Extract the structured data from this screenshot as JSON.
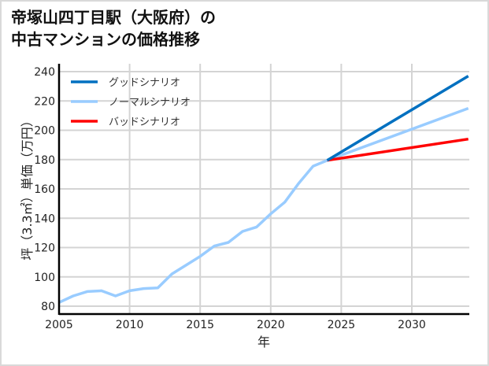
{
  "title": {
    "line1": "帝塚山四丁目駅（大阪府）の",
    "line2": "中古マンションの価格推移"
  },
  "chart_data": {
    "type": "line",
    "title": "帝塚山四丁目駅（大阪府）の中古マンションの価格推移",
    "xlabel": "年",
    "ylabel": "坪（3.3㎡）単価（万円）",
    "xlim": [
      2005,
      2034
    ],
    "ylim": [
      77,
      245
    ],
    "xticks": [
      2005,
      2010,
      2015,
      2020,
      2025,
      2030
    ],
    "yticks": [
      80,
      100,
      120,
      140,
      160,
      180,
      200,
      220,
      240
    ],
    "grid": true,
    "legend_position": "upper left",
    "series": [
      {
        "name": "グッドシナリオ",
        "color": "#0070c0",
        "x": [
          2024,
          2034
        ],
        "y": [
          179.5,
          237
        ]
      },
      {
        "name": "ノーマルシナリオ",
        "color": "#99ccff",
        "x": [
          2005,
          2006,
          2007,
          2008,
          2009,
          2010,
          2011,
          2012,
          2013,
          2014,
          2015,
          2016,
          2017,
          2018,
          2019,
          2020,
          2021,
          2022,
          2023,
          2024,
          2034
        ],
        "y": [
          82.5,
          87,
          90,
          90.5,
          87,
          90.5,
          92,
          92.5,
          102,
          108,
          114,
          121,
          123.5,
          131,
          134,
          143,
          151,
          164,
          175.5,
          179.5,
          215
        ]
      },
      {
        "name": "バッドシナリオ",
        "color": "#ff0000",
        "x": [
          2024,
          2034
        ],
        "y": [
          179.5,
          194
        ]
      }
    ]
  }
}
